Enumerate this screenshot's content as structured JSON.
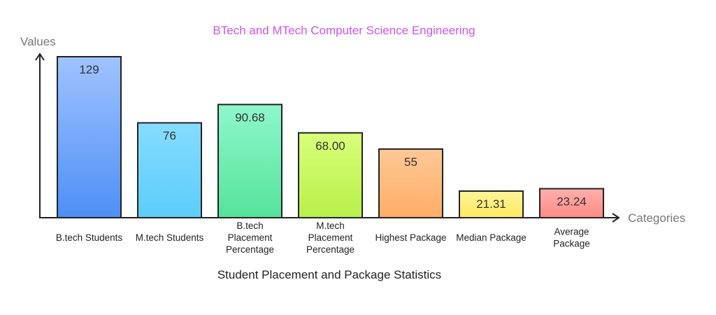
{
  "chart_data": {
    "type": "bar",
    "title": "BTech and MTech Computer Science Engineering",
    "subtitle": "Student Placement and Package Statistics",
    "xlabel": "Categories",
    "ylabel": "Values",
    "ylim": [
      0,
      129
    ],
    "grid": false,
    "legend": "none",
    "categories": [
      [
        "B.tech Students"
      ],
      [
        "M.tech Students"
      ],
      [
        "B.tech",
        "Placement",
        "Percentage"
      ],
      [
        "M.tech",
        "Placement",
        "Percentage"
      ],
      [
        "Highest Package"
      ],
      [
        "Median Package"
      ],
      [
        "Average",
        "Package"
      ]
    ],
    "values": [
      129,
      76,
      90.68,
      68.0,
      55,
      21.31,
      23.24
    ],
    "value_labels": [
      "129",
      "76",
      "90.68",
      "68.00",
      "55",
      "21.31",
      "23.24"
    ],
    "colors": {
      "title": "#cc55ee",
      "axis_text": "#777777",
      "bars_top": [
        "#9fc3ff",
        "#86dcff",
        "#8ff7cd",
        "#d8ff7a",
        "#ffc896",
        "#fff598",
        "#ffb0ac"
      ],
      "bars_bottom": [
        "#4e8ff5",
        "#5ccdfa",
        "#55e39a",
        "#b8f04a",
        "#ffae66",
        "#ffe860",
        "#ff8a85"
      ]
    }
  }
}
